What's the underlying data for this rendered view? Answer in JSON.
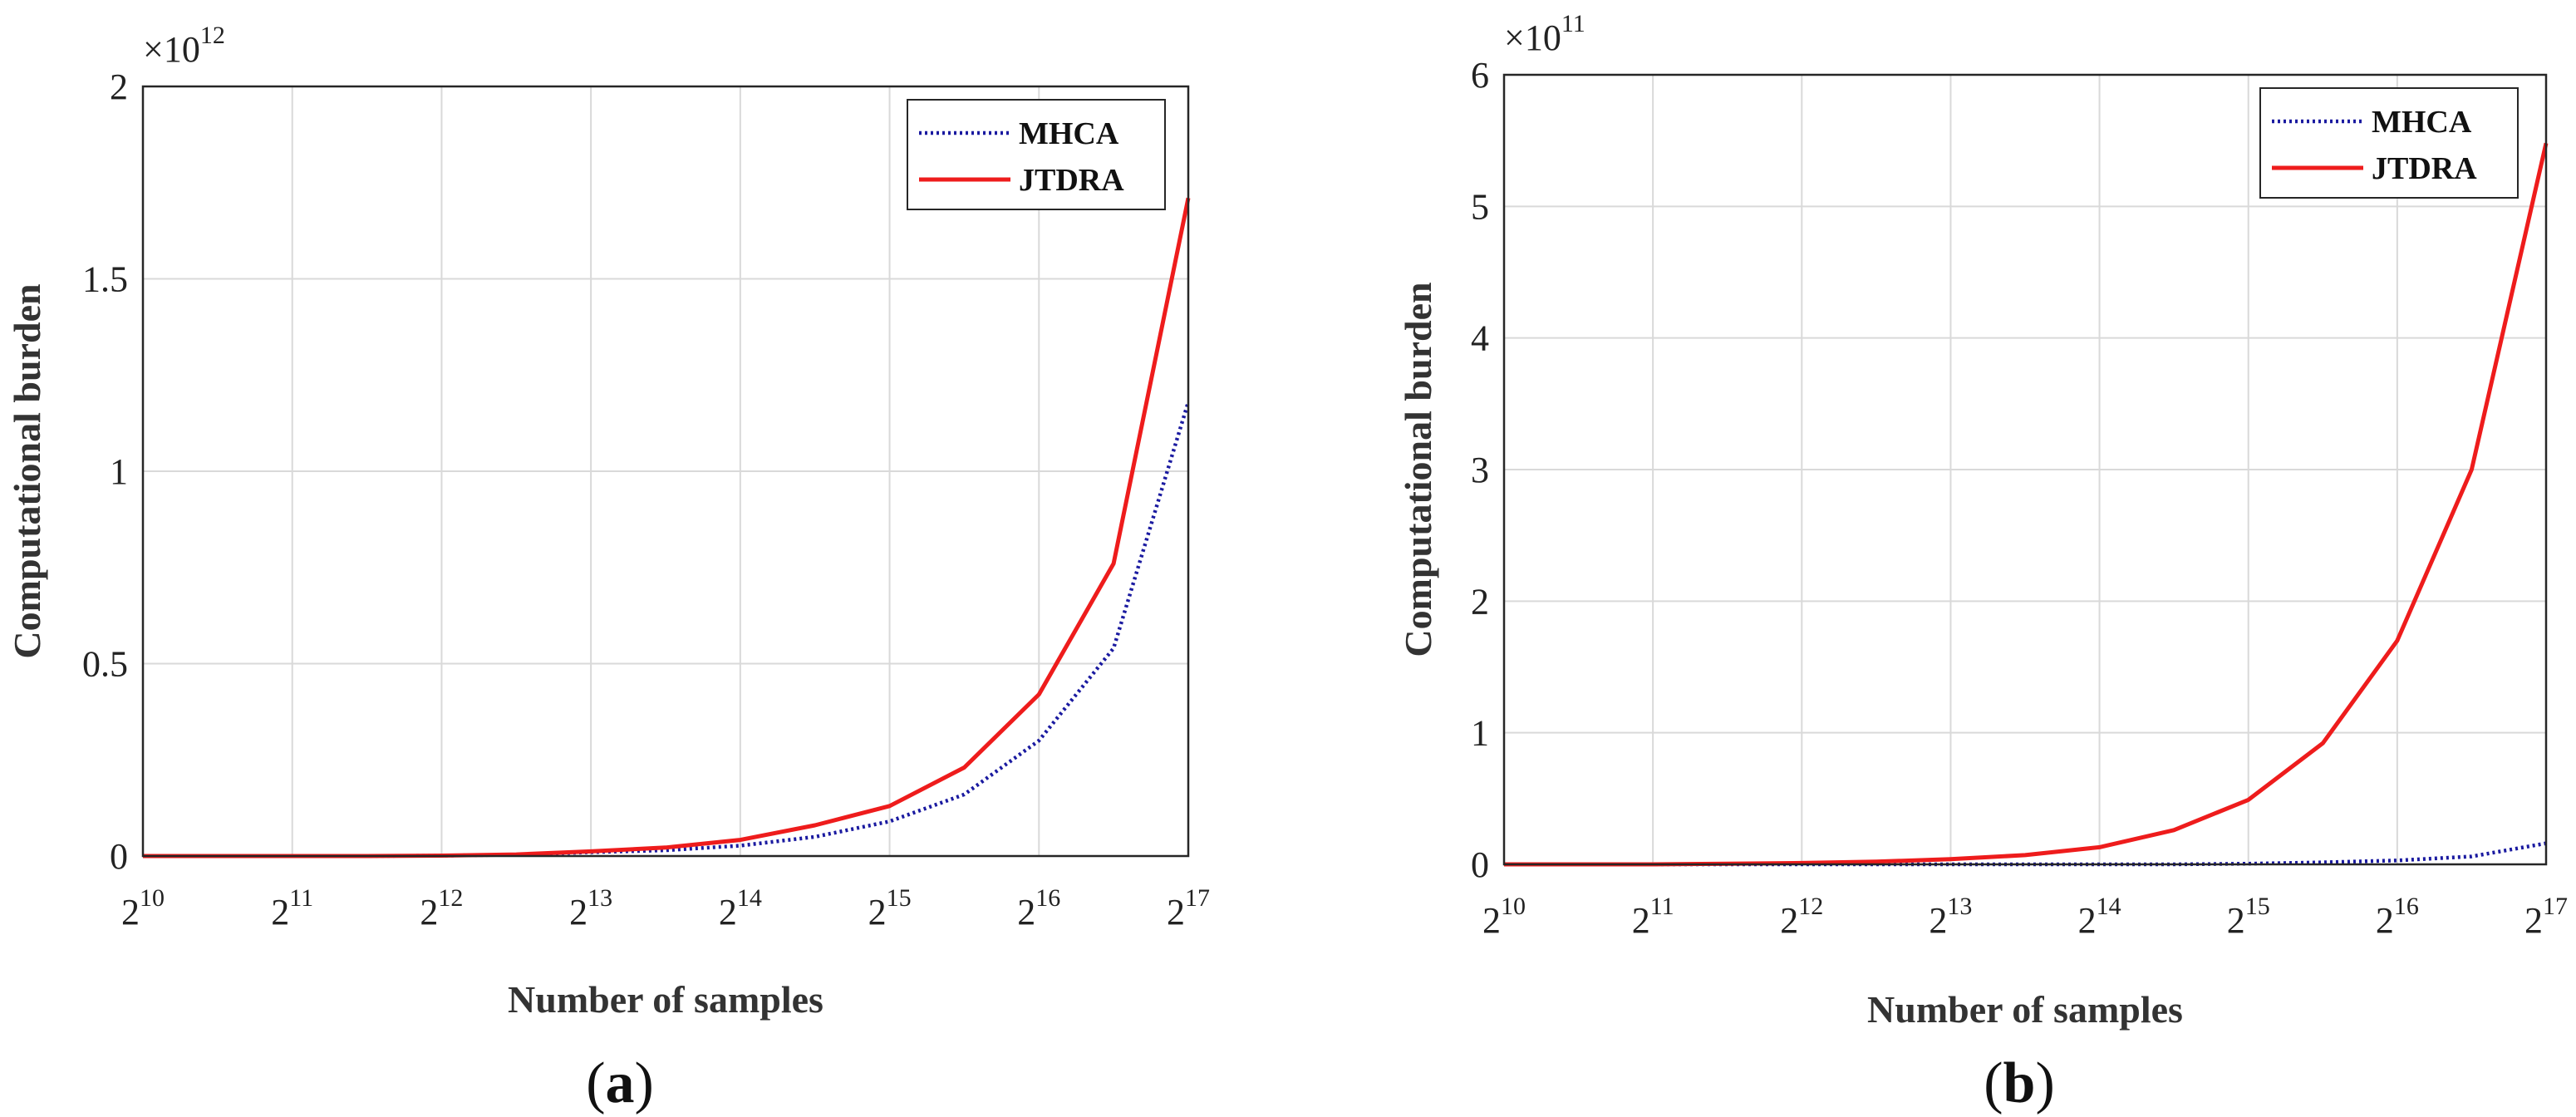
{
  "chart_data": [
    {
      "type": "line",
      "panel_label": "a",
      "xlabel": "Number of samples",
      "ylabel": "Computational burden",
      "x_exponent_ticks": [
        10,
        11,
        12,
        13,
        14,
        15,
        16,
        17
      ],
      "x_base": "2",
      "xlim": [
        10,
        17
      ],
      "y_multiplier_base": "×10",
      "y_multiplier_exp": "12",
      "ylim": [
        0,
        2
      ],
      "y_ticks": [
        "0",
        "0.5",
        "1",
        "1.5",
        "2"
      ],
      "grid": true,
      "legend_position": "top-right",
      "series": [
        {
          "name": "MHCA",
          "style": "dotted",
          "color": "#1a1aa0",
          "values": [
            0.0,
            0.0,
            0.0,
            0.0,
            0.001,
            0.0035,
            0.01,
            0.015,
            0.027,
            0.05,
            0.09,
            0.16,
            0.3,
            0.54,
            1.18
          ]
        },
        {
          "name": "JTDRA",
          "style": "solid",
          "color": "#ee1c1c",
          "values": [
            0.0,
            0.0,
            0.0,
            0.0,
            0.001,
            0.004,
            0.012,
            0.022,
            0.042,
            0.08,
            0.13,
            0.23,
            0.42,
            0.76,
            1.71
          ]
        }
      ]
    },
    {
      "type": "line",
      "panel_label": "b",
      "xlabel": "Number of samples",
      "ylabel": "Computational burden",
      "x_exponent_ticks": [
        10,
        11,
        12,
        13,
        14,
        15,
        16,
        17
      ],
      "x_base": "2",
      "xlim": [
        10,
        17
      ],
      "y_multiplier_base": "×10",
      "y_multiplier_exp": "11",
      "ylim": [
        0,
        6
      ],
      "y_ticks": [
        "0",
        "1",
        "2",
        "3",
        "4",
        "5",
        "6"
      ],
      "grid": true,
      "legend_position": "top-right",
      "series": [
        {
          "name": "MHCA",
          "style": "dotted",
          "color": "#1a1aa0",
          "values": [
            0.0,
            0.0,
            0.0,
            0.0,
            0.0,
            0.0,
            0.0,
            0.0,
            0.0,
            0.0,
            0.005,
            0.015,
            0.03,
            0.06,
            0.16
          ]
        },
        {
          "name": "JTDRA",
          "style": "solid",
          "color": "#ee1c1c",
          "values": [
            0.0,
            0.0,
            0.0,
            0.005,
            0.01,
            0.02,
            0.04,
            0.07,
            0.13,
            0.26,
            0.49,
            0.92,
            1.7,
            3.0,
            5.48
          ]
        }
      ]
    }
  ]
}
